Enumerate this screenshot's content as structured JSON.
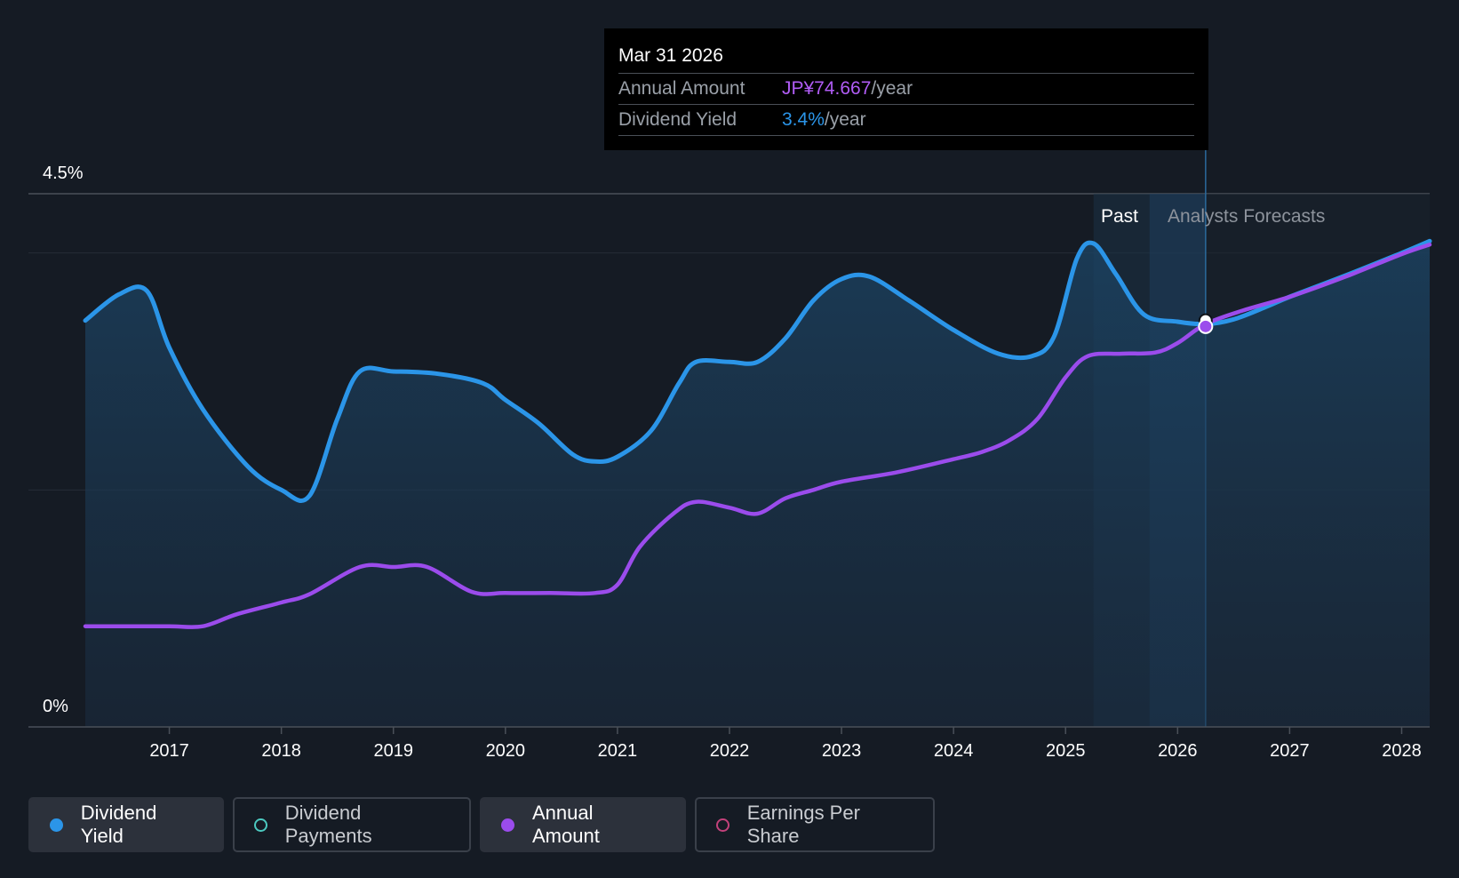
{
  "colors": {
    "dividend_yield": "#2b95e8",
    "annual_amount": "#9b4cec",
    "dividend_payments": "#4cc9c0",
    "earnings_per_share": "#c2417a",
    "background": "#151b24"
  },
  "tooltip": {
    "date": "Mar 31 2026",
    "annual_amount_label": "Annual Amount",
    "annual_amount_value": "JP¥74.667",
    "annual_amount_unit": "/year",
    "dividend_yield_label": "Dividend Yield",
    "dividend_yield_value": "3.4%",
    "dividend_yield_unit": "/year"
  },
  "legend": [
    {
      "label": "Dividend Yield",
      "icon": "filled-dot-icon",
      "active": true
    },
    {
      "label": "Dividend Payments",
      "icon": "hollow-dot-icon",
      "active": false
    },
    {
      "label": "Annual Amount",
      "icon": "filled-dot-icon",
      "active": true
    },
    {
      "label": "Earnings Per Share",
      "icon": "hollow-dot-icon",
      "active": false
    }
  ],
  "chart_data": {
    "type": "line",
    "title": "",
    "xlabel": "",
    "ylabel": "",
    "y_labels": [
      "4.5%",
      "0%"
    ],
    "ylim": [
      0,
      4.5
    ],
    "xlim": [
      2016.25,
      2028.25
    ],
    "x_ticks": [
      "2017",
      "2018",
      "2019",
      "2020",
      "2021",
      "2022",
      "2023",
      "2024",
      "2025",
      "2026",
      "2027",
      "2028"
    ],
    "regions": {
      "past_label": "Past",
      "forecast_label": "Analysts Forecasts",
      "past_end": 2025.75,
      "forecast_start": 2026.25,
      "highlight_start": 2025.25
    },
    "series": [
      {
        "name": "Dividend Yield",
        "unit": "%",
        "points": [
          [
            2016.25,
            3.43
          ],
          [
            2016.55,
            3.65
          ],
          [
            2016.8,
            3.68
          ],
          [
            2017.0,
            3.2
          ],
          [
            2017.3,
            2.68
          ],
          [
            2017.7,
            2.2
          ],
          [
            2018.0,
            2.0
          ],
          [
            2018.25,
            1.95
          ],
          [
            2018.5,
            2.6
          ],
          [
            2018.7,
            3.0
          ],
          [
            2019.0,
            3.0
          ],
          [
            2019.4,
            2.98
          ],
          [
            2019.8,
            2.9
          ],
          [
            2020.0,
            2.76
          ],
          [
            2020.3,
            2.56
          ],
          [
            2020.6,
            2.3
          ],
          [
            2020.8,
            2.24
          ],
          [
            2021.0,
            2.28
          ],
          [
            2021.3,
            2.5
          ],
          [
            2021.55,
            2.9
          ],
          [
            2021.7,
            3.08
          ],
          [
            2022.0,
            3.08
          ],
          [
            2022.25,
            3.08
          ],
          [
            2022.5,
            3.28
          ],
          [
            2022.75,
            3.6
          ],
          [
            2023.0,
            3.78
          ],
          [
            2023.25,
            3.8
          ],
          [
            2023.6,
            3.6
          ],
          [
            2024.0,
            3.35
          ],
          [
            2024.4,
            3.15
          ],
          [
            2024.7,
            3.13
          ],
          [
            2024.9,
            3.3
          ],
          [
            2025.1,
            3.95
          ],
          [
            2025.25,
            4.08
          ],
          [
            2025.45,
            3.82
          ],
          [
            2025.7,
            3.48
          ],
          [
            2026.0,
            3.42
          ],
          [
            2026.25,
            3.4
          ],
          [
            2026.5,
            3.44
          ],
          [
            2026.8,
            3.55
          ],
          [
            2027.0,
            3.63
          ],
          [
            2027.5,
            3.81
          ],
          [
            2028.0,
            4.0
          ],
          [
            2028.25,
            4.1
          ]
        ]
      },
      {
        "name": "Annual Amount",
        "unit": "JP¥",
        "points": [
          [
            2016.25,
            0.85
          ],
          [
            2016.6,
            0.85
          ],
          [
            2017.0,
            0.85
          ],
          [
            2017.3,
            0.85
          ],
          [
            2017.6,
            0.95
          ],
          [
            2018.0,
            1.05
          ],
          [
            2018.25,
            1.12
          ],
          [
            2018.7,
            1.35
          ],
          [
            2019.0,
            1.35
          ],
          [
            2019.3,
            1.35
          ],
          [
            2019.7,
            1.14
          ],
          [
            2020.0,
            1.13
          ],
          [
            2020.4,
            1.13
          ],
          [
            2020.8,
            1.13
          ],
          [
            2021.0,
            1.2
          ],
          [
            2021.2,
            1.52
          ],
          [
            2021.5,
            1.8
          ],
          [
            2021.7,
            1.9
          ],
          [
            2022.0,
            1.85
          ],
          [
            2022.25,
            1.8
          ],
          [
            2022.5,
            1.93
          ],
          [
            2022.75,
            2.0
          ],
          [
            2023.0,
            2.07
          ],
          [
            2023.5,
            2.15
          ],
          [
            2024.0,
            2.26
          ],
          [
            2024.25,
            2.32
          ],
          [
            2024.5,
            2.42
          ],
          [
            2024.75,
            2.6
          ],
          [
            2025.0,
            2.95
          ],
          [
            2025.2,
            3.13
          ],
          [
            2025.5,
            3.15
          ],
          [
            2025.8,
            3.16
          ],
          [
            2026.0,
            3.24
          ],
          [
            2026.25,
            3.4
          ],
          [
            2026.6,
            3.52
          ],
          [
            2027.0,
            3.63
          ],
          [
            2027.5,
            3.8
          ],
          [
            2028.0,
            3.99
          ],
          [
            2028.25,
            4.07
          ]
        ]
      }
    ]
  }
}
